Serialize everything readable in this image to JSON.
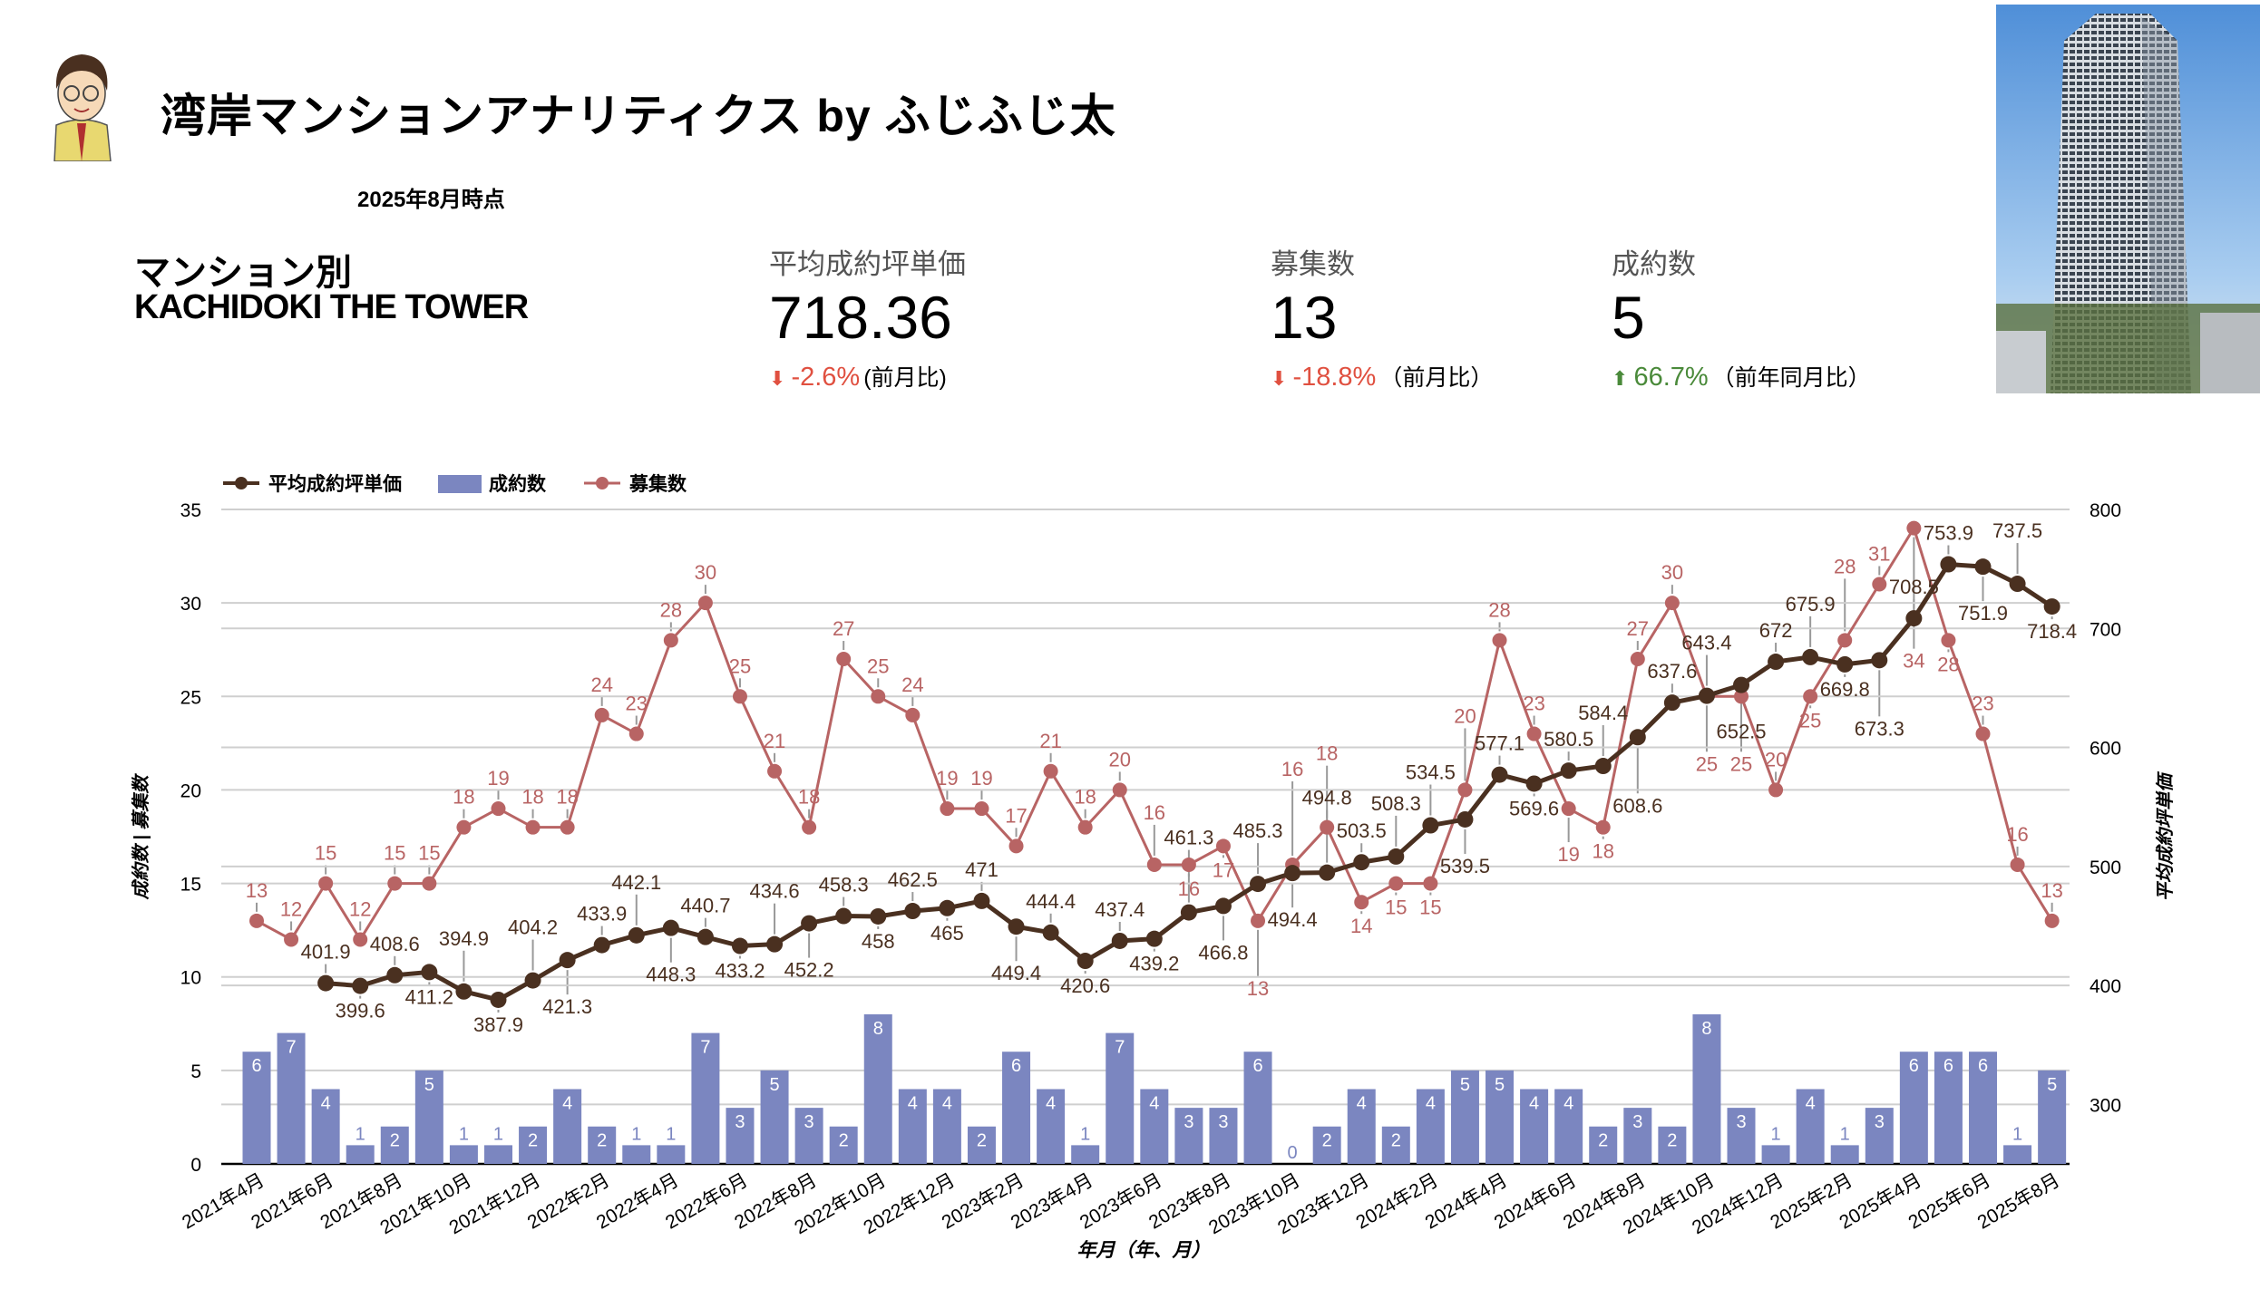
{
  "header": {
    "title": "湾岸マンションアナリティクス by ふじふじ太",
    "as_of": "2025年8月時点",
    "building_label": "マンション別",
    "building_name": "KACHIDOKI THE TOWER"
  },
  "kpis": [
    {
      "label": "平均成約坪単価",
      "value": "718.36",
      "change": "-2.6%",
      "direction": "down",
      "note": "(前月比)"
    },
    {
      "label": "募集数",
      "value": "13",
      "change": "-18.8%",
      "direction": "down",
      "note": "（前月比）"
    },
    {
      "label": "成約数",
      "value": "5",
      "change": "66.7%",
      "direction": "up",
      "note": "（前年同月比）"
    }
  ],
  "colors": {
    "price": "#4a3020",
    "listings": "#b86464",
    "contracts": "#7b86c0",
    "down": "#e05040",
    "up": "#4a8a3a"
  },
  "chart_data": {
    "type": "combo",
    "xlabel": "年月（年、月）",
    "ylabel_left": "成約数 | 募集数",
    "ylabel_right": "平均成約坪単価",
    "ylim_left": [
      0,
      35
    ],
    "yticks_left": [
      0,
      5,
      10,
      15,
      20,
      25,
      30,
      35
    ],
    "ylim_right": [
      250,
      800
    ],
    "yticks_right": [
      300,
      400,
      500,
      600,
      700,
      800
    ],
    "grid": true,
    "legend": "top-left",
    "x_tick_labels": [
      "2021年4月",
      "2021年6月",
      "2021年8月",
      "2021年10月",
      "2021年12月",
      "2022年2月",
      "2022年4月",
      "2022年6月",
      "2022年8月",
      "2022年10月",
      "2022年12月",
      "2023年2月",
      "2023年4月",
      "2023年6月",
      "2023年8月",
      "2023年10月",
      "2023年12月",
      "2024年2月",
      "2024年4月",
      "2024年6月",
      "2024年8月",
      "2024年10月",
      "2024年12月",
      "2025年2月",
      "2025年4月",
      "2025年6月",
      "2025年8月"
    ],
    "x": [
      "2021-04",
      "2021-05",
      "2021-06",
      "2021-07",
      "2021-08",
      "2021-09",
      "2021-10",
      "2021-11",
      "2021-12",
      "2022-01",
      "2022-02",
      "2022-03",
      "2022-04",
      "2022-05",
      "2022-06",
      "2022-07",
      "2022-08",
      "2022-09",
      "2022-10",
      "2022-11",
      "2022-12",
      "2023-01",
      "2023-02",
      "2023-03",
      "2023-04",
      "2023-05",
      "2023-06",
      "2023-07",
      "2023-08",
      "2023-09",
      "2023-10",
      "2023-11",
      "2023-12",
      "2024-01",
      "2024-02",
      "2024-03",
      "2024-04",
      "2024-05",
      "2024-06",
      "2024-07",
      "2024-08",
      "2024-09",
      "2024-10",
      "2024-11",
      "2024-12",
      "2025-01",
      "2025-02",
      "2025-03",
      "2025-04",
      "2025-05",
      "2025-06",
      "2025-07",
      "2025-08"
    ],
    "series": [
      {
        "name": "平均成約坪単価",
        "type": "line",
        "axis": "right",
        "values": [
          null,
          null,
          401.9,
          399.6,
          408.6,
          411.2,
          394.9,
          387.9,
          404.2,
          421.3,
          433.9,
          442.1,
          448.3,
          440.7,
          433.2,
          434.6,
          452.2,
          458.3,
          458,
          462.5,
          465,
          471,
          449.4,
          444.4,
          420.6,
          437.4,
          439.2,
          461.3,
          466.8,
          485.3,
          494.4,
          494.8,
          503.5,
          508.3,
          534.5,
          539.5,
          577.1,
          569.6,
          580.5,
          584.4,
          608.6,
          637.6,
          643.4,
          652.5,
          672,
          675.9,
          669.8,
          673.3,
          708.5,
          753.9,
          751.9,
          737.5,
          718.4
        ]
      },
      {
        "name": "成約数",
        "type": "bar",
        "axis": "left",
        "values": [
          6,
          7,
          4,
          1,
          2,
          5,
          1,
          1,
          2,
          4,
          2,
          1,
          1,
          7,
          3,
          5,
          3,
          2,
          8,
          4,
          4,
          2,
          6,
          4,
          1,
          7,
          4,
          3,
          3,
          6,
          0,
          2,
          4,
          2,
          4,
          5,
          5,
          4,
          4,
          2,
          3,
          2,
          8,
          3,
          1,
          4,
          1,
          3,
          6,
          6,
          6,
          1,
          5
        ]
      },
      {
        "name": "募集数",
        "type": "line",
        "axis": "left",
        "values": [
          13,
          12,
          15,
          12,
          15,
          15,
          18,
          19,
          18,
          18,
          24,
          23,
          28,
          30,
          25,
          21,
          18,
          27,
          25,
          24,
          19,
          19,
          17,
          21,
          18,
          20,
          16,
          16,
          17,
          13,
          16,
          18,
          14,
          15,
          15,
          20,
          28,
          23,
          19,
          18,
          27,
          30,
          25,
          25,
          20,
          25,
          28,
          31,
          34,
          28,
          23,
          16,
          13
        ]
      }
    ]
  }
}
